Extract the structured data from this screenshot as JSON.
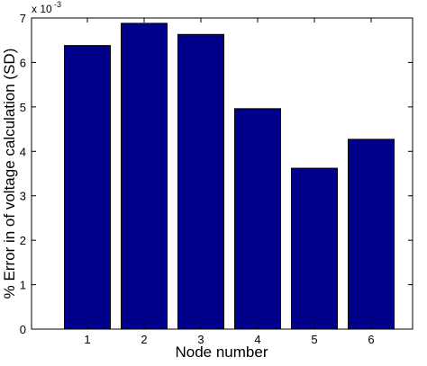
{
  "chart_data": {
    "type": "bar",
    "categories": [
      "1",
      "2",
      "3",
      "4",
      "5",
      "6"
    ],
    "values": [
      6.38,
      6.88,
      6.63,
      4.96,
      3.62,
      4.27
    ],
    "value_scale_label": "x 10",
    "value_scale_exponent": "-3",
    "xlabel": "Node number",
    "ylabel": "% Error in of voltage calculation (SD)",
    "ylim": [
      0,
      7
    ],
    "yticks": [
      "0",
      "1",
      "2",
      "3",
      "4",
      "5",
      "6",
      "7"
    ],
    "grid": false,
    "bar_color": "#00008b",
    "bar_stroke": "#000000"
  }
}
